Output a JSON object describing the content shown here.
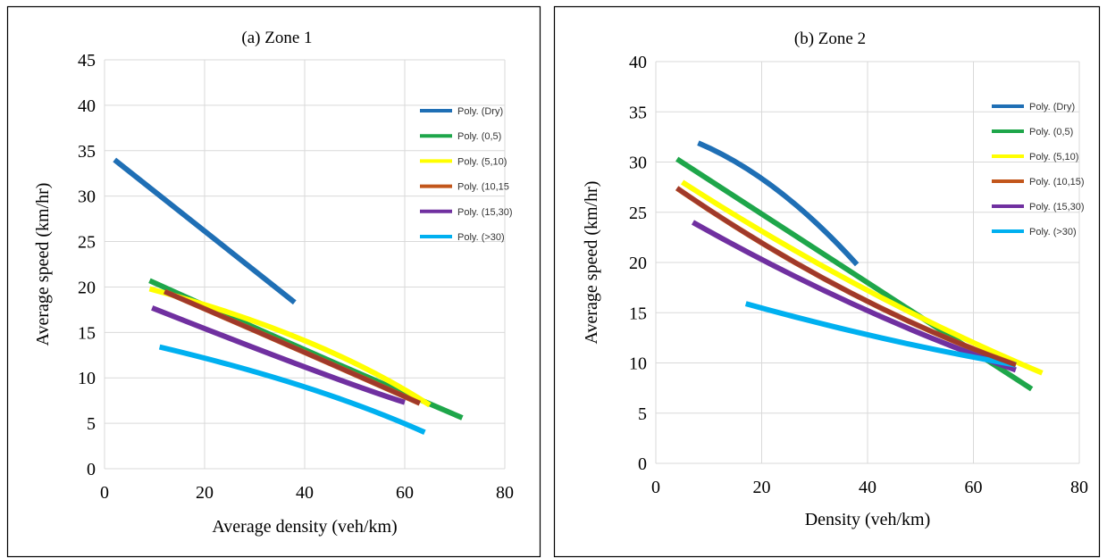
{
  "chart_data": [
    {
      "type": "line",
      "title": "(a) Zone 1",
      "xlabel": "Average density (veh/km)",
      "ylabel": "Average speed (km/hr)",
      "xlim": [
        0,
        80
      ],
      "ylim": [
        0,
        45
      ],
      "xticks": [
        "0",
        "20",
        "40",
        "60",
        "80"
      ],
      "yticks": [
        "0",
        "5",
        "10",
        "15",
        "20",
        "25",
        "30",
        "35",
        "40",
        "45"
      ],
      "grid": true,
      "legend_position": "right",
      "series": [
        {
          "name": "Poly. (Dry)",
          "color": "#1f6fb5",
          "x": [
            2,
            38
          ],
          "y": [
            34,
            18.3
          ]
        },
        {
          "name": "Poly. (0,5)",
          "color": "#1ea64a",
          "x": [
            9,
            40,
            71.5
          ],
          "y": [
            20.7,
            13.1,
            5.6
          ]
        },
        {
          "name": "Poly. (5,10)",
          "color": "#ffff00",
          "x": [
            9,
            40,
            65
          ],
          "y": [
            19.8,
            14.1,
            7
          ]
        },
        {
          "name": "Poly. (10,15",
          "color": "#c2561b",
          "x": [
            12,
            40,
            63
          ],
          "y": [
            19.5,
            12.8,
            7.2
          ]
        },
        {
          "name": "Poly. (15,30)",
          "color": "#7030a0",
          "x": [
            9.5,
            40,
            60
          ],
          "y": [
            17.7,
            11.2,
            7.3
          ]
        },
        {
          "name": "Poly. (>30)",
          "color": "#00b0f0",
          "x": [
            11,
            40,
            64
          ],
          "y": [
            13.4,
            9,
            4
          ]
        }
      ],
      "overlay_series": [
        {
          "color": "#a0392b",
          "x": [
            12,
            40,
            63
          ],
          "y": [
            19.5,
            12.8,
            7.2
          ]
        }
      ]
    },
    {
      "type": "line",
      "title": "(b) Zone 2",
      "xlabel": "Density (veh/km)",
      "ylabel": "Average speed (km/hr)",
      "xlim": [
        0,
        80
      ],
      "ylim": [
        0,
        40
      ],
      "xticks": [
        "0",
        "20",
        "40",
        "60",
        "80"
      ],
      "yticks": [
        "0",
        "5",
        "10",
        "15",
        "20",
        "25",
        "30",
        "35",
        "40"
      ],
      "grid": true,
      "legend_position": "right",
      "series": [
        {
          "name": "Poly. (Dry)",
          "color": "#1f6fb5",
          "x": [
            8,
            23,
            38
          ],
          "y": [
            31.9,
            27.2,
            19.8
          ]
        },
        {
          "name": "Poly. (0,5)",
          "color": "#1ea64a",
          "x": [
            4,
            37,
            71
          ],
          "y": [
            30.3,
            19,
            7.4
          ]
        },
        {
          "name": "Poly. (5,10)",
          "color": "#ffff00",
          "x": [
            5,
            39,
            73
          ],
          "y": [
            28,
            17.5,
            9
          ]
        },
        {
          "name": "Poly. (10,15)",
          "color": "#c2561b",
          "x": [
            4,
            36,
            68
          ],
          "y": [
            27.4,
            17.2,
            9.8
          ]
        },
        {
          "name": "Poly. (15,30)",
          "color": "#7030a0",
          "x": [
            7,
            37.5,
            68
          ],
          "y": [
            24,
            15.8,
            9.3
          ]
        },
        {
          "name": "Poly. (>30)",
          "color": "#00b0f0",
          "x": [
            17,
            42.5,
            68
          ],
          "y": [
            15.9,
            12.5,
            9.8
          ]
        }
      ],
      "overlay_series": [
        {
          "color": "#a0392b",
          "x": [
            4,
            36,
            68
          ],
          "y": [
            27.4,
            17.2,
            9.8
          ]
        }
      ]
    }
  ]
}
